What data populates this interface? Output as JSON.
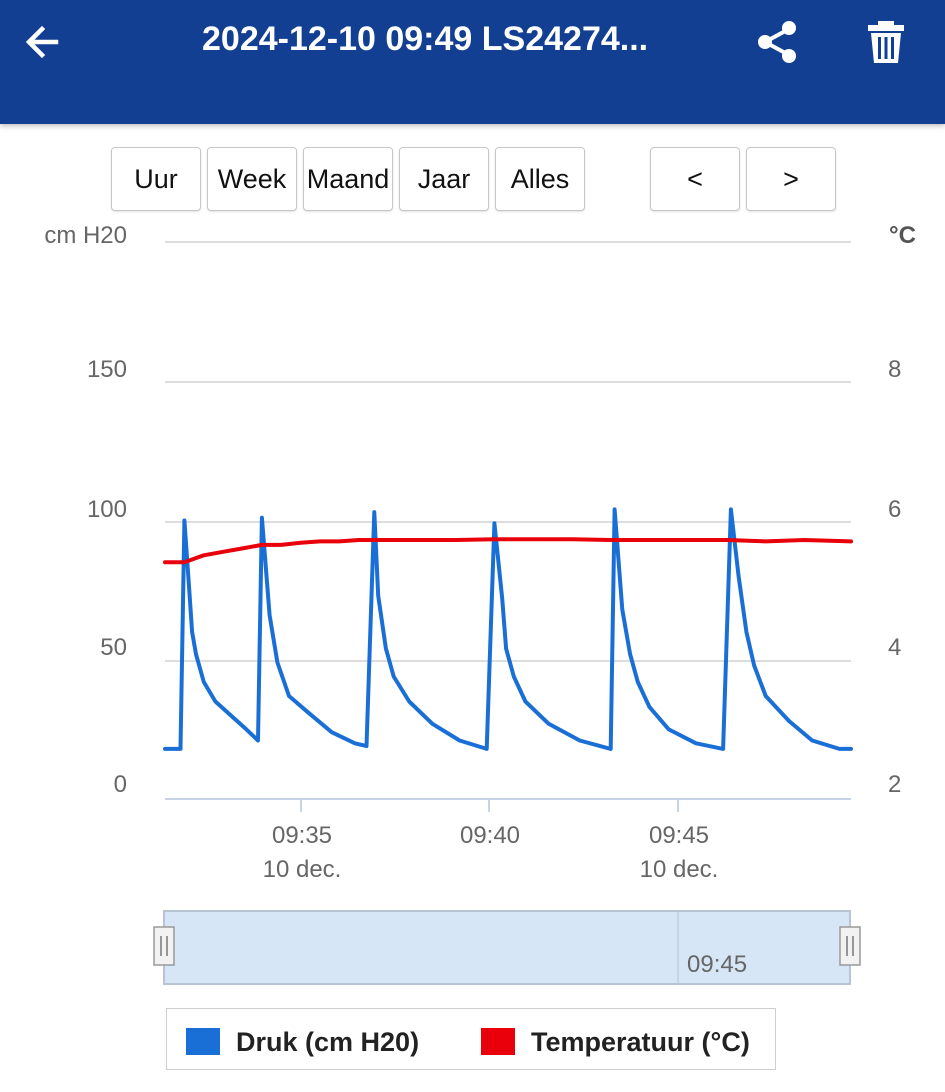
{
  "header": {
    "title": "2024-12-10 09:49 LS24274...",
    "back_icon": "arrow-left-icon",
    "share_icon": "share-icon",
    "delete_icon": "trash-icon"
  },
  "range_buttons": [
    "Uur",
    "Week",
    "Maand",
    "Jaar",
    "Alles"
  ],
  "nav_buttons": {
    "prev": "<",
    "next": ">"
  },
  "colors": {
    "header": "#123f92",
    "pressure": "#1a6fd6",
    "temperature": "#e8000b",
    "navigator": "#d6e6f7"
  },
  "chart_data": {
    "type": "line",
    "left_axis": {
      "label": "cm H20",
      "ticks": [
        "0",
        "50",
        "100",
        "150"
      ],
      "range": [
        0,
        200
      ]
    },
    "right_axis": {
      "label": "°C",
      "ticks": [
        "2",
        "4",
        "6",
        "8"
      ],
      "range": [
        2,
        10
      ]
    },
    "x_ticks": [
      {
        "time": "09:35",
        "date": "10 dec."
      },
      {
        "time": "09:40",
        "date": ""
      },
      {
        "time": "09:45",
        "date": "10 dec."
      }
    ],
    "grid": true,
    "series": [
      {
        "name": "Druk (cm H20)",
        "axis": "left",
        "x": [
          31.5,
          31.9,
          32.0,
          32.1,
          32.2,
          32.3,
          32.5,
          32.8,
          33.2,
          33.6,
          33.9,
          34.0,
          34.2,
          34.4,
          34.7,
          35.2,
          35.8,
          36.4,
          36.7,
          36.9,
          37.0,
          37.2,
          37.4,
          37.8,
          38.4,
          39.1,
          39.8,
          40.0,
          40.2,
          40.3,
          40.5,
          40.8,
          41.4,
          42.2,
          43.0,
          43.1,
          43.3,
          43.5,
          43.7,
          44.0,
          44.5,
          45.2,
          45.9,
          46.1,
          46.3,
          46.5,
          46.7,
          47.0,
          47.6,
          48.2,
          48.9,
          49.2
        ],
        "values": [
          18,
          18,
          100,
          80,
          60,
          52,
          42,
          35,
          30,
          25,
          21,
          101,
          66,
          49,
          37,
          31,
          24,
          20,
          19,
          103,
          73,
          54,
          44,
          35,
          27,
          21,
          18,
          99,
          72,
          54,
          44,
          35,
          27,
          21,
          18,
          104,
          68,
          52,
          42,
          33,
          25,
          20,
          18,
          104,
          80,
          60,
          48,
          37,
          28,
          21,
          18,
          18
        ],
        "color": "#1a6fd6"
      },
      {
        "name": "Temperatuur (°C)",
        "axis": "right",
        "x": [
          31.5,
          32.0,
          32.5,
          33.0,
          33.5,
          34.0,
          34.5,
          35.0,
          35.5,
          36.0,
          36.5,
          37.0,
          38.0,
          39.0,
          40.0,
          41.0,
          42.0,
          43.0,
          44.0,
          45.0,
          46.0,
          47.0,
          48.0,
          49.2
        ],
        "values": [
          5.4,
          5.4,
          5.5,
          5.55,
          5.6,
          5.65,
          5.65,
          5.68,
          5.7,
          5.7,
          5.72,
          5.72,
          5.72,
          5.72,
          5.73,
          5.73,
          5.73,
          5.72,
          5.72,
          5.72,
          5.72,
          5.7,
          5.72,
          5.7
        ],
        "color": "#e8000b"
      }
    ],
    "navigator": {
      "label": "09:45"
    },
    "legend": [
      "Druk (cm H20)",
      "Temperatuur (°C)"
    ]
  }
}
